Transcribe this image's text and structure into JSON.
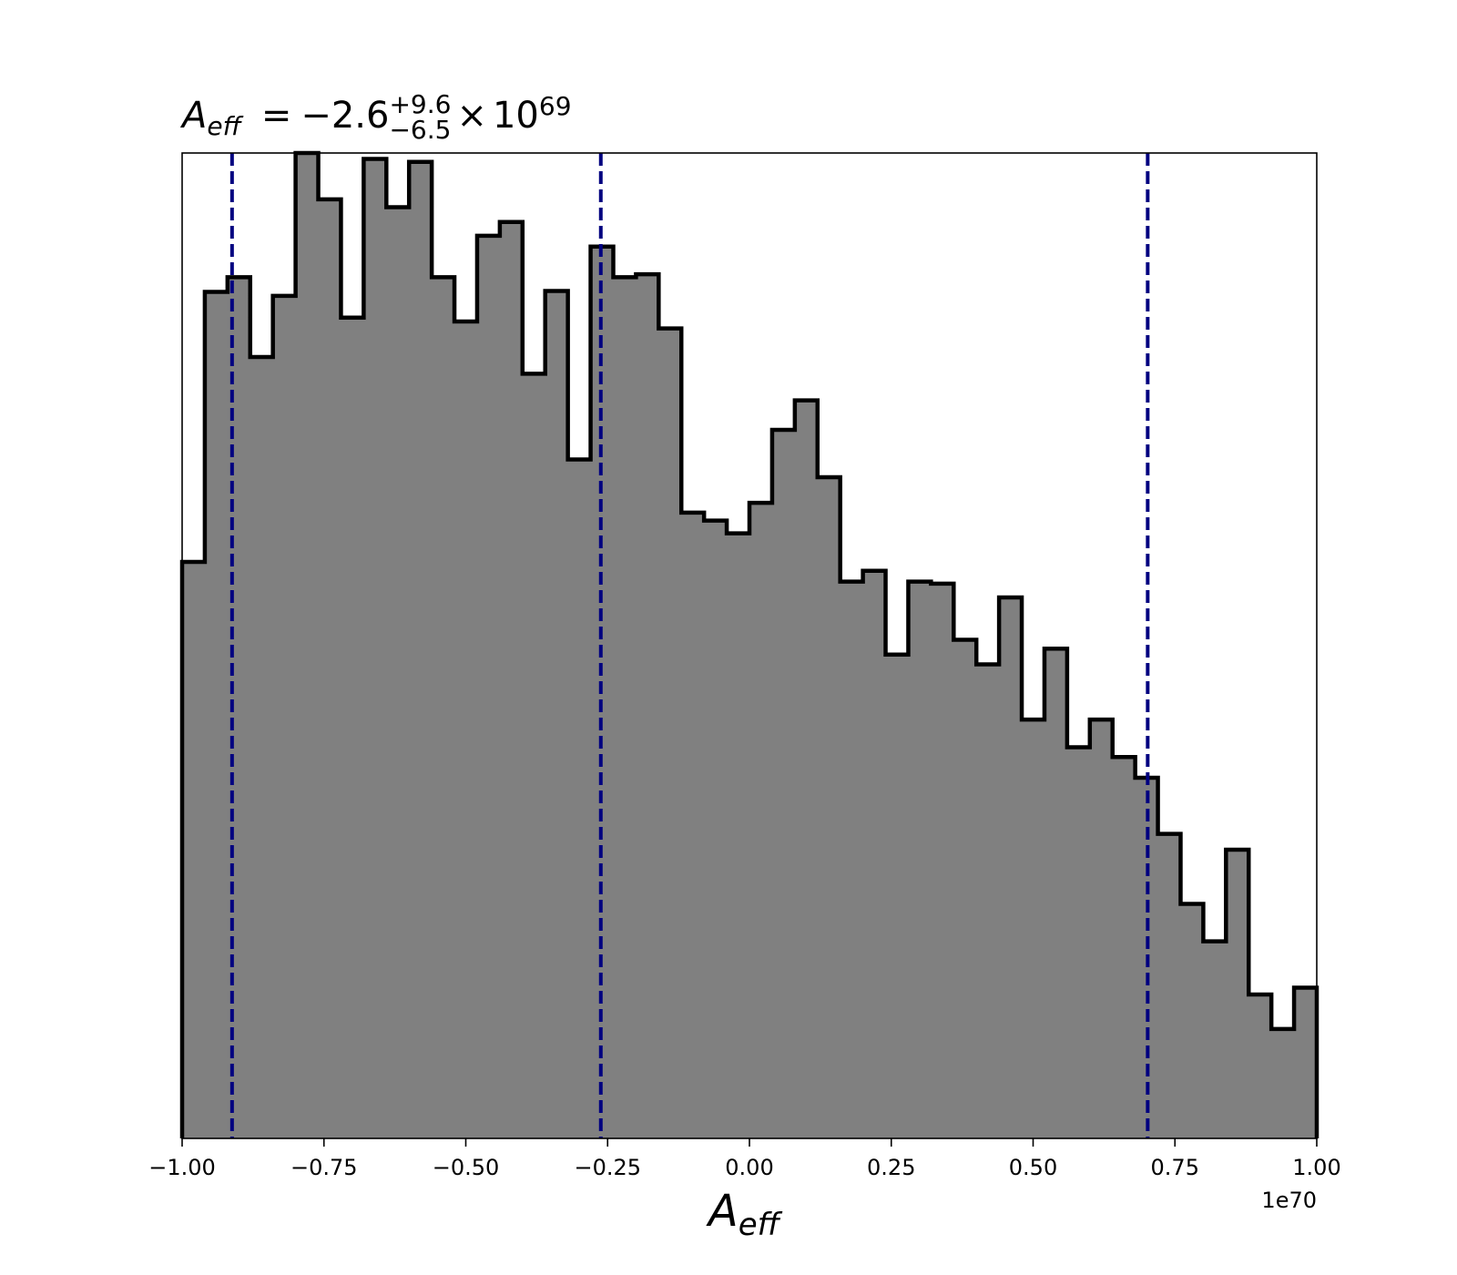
{
  "chart_data": {
    "type": "histogram",
    "title": {
      "symbol": "A",
      "symbol_sub": "eff",
      "equals": "=",
      "median": "−2.6",
      "upper": "+9.6",
      "lower": "−6.5",
      "times": "×",
      "base": "10",
      "exponent": "69"
    },
    "xlabel": {
      "symbol": "A",
      "sub": "eff"
    },
    "ylabel": "",
    "x_offset_label": "1e70",
    "xlim": [
      -1.0,
      1.0
    ],
    "x_scale_factor": 1e+70,
    "yaxis_visible": false,
    "xticks": [
      -1.0,
      -0.75,
      -0.5,
      -0.25,
      0.0,
      0.25,
      0.5,
      0.75,
      1.0
    ],
    "xtick_labels": [
      "−1.00",
      "−0.75",
      "−0.50",
      "−0.25",
      "0.00",
      "0.25",
      "0.50",
      "0.75",
      "1.00"
    ],
    "bin_edges_range": [
      -1.0,
      1.0
    ],
    "bin_count": 50,
    "counts_relative": [
      0.585,
      0.859,
      0.874,
      0.793,
      0.855,
      1.0,
      0.953,
      0.833,
      0.994,
      0.945,
      0.991,
      0.874,
      0.829,
      0.916,
      0.93,
      0.776,
      0.86,
      0.689,
      0.905,
      0.874,
      0.877,
      0.822,
      0.635,
      0.627,
      0.614,
      0.645,
      0.719,
      0.749,
      0.671,
      0.565,
      0.576,
      0.491,
      0.565,
      0.563,
      0.506,
      0.481,
      0.549,
      0.425,
      0.497,
      0.397,
      0.425,
      0.387,
      0.366,
      0.309,
      0.238,
      0.2,
      0.293,
      0.146,
      0.111,
      0.153
    ],
    "quantile_lines": [
      -0.912,
      -0.262,
      0.702
    ],
    "colors": {
      "fill": "#808080",
      "edge": "#000000",
      "quantile_line": "#000080"
    }
  }
}
